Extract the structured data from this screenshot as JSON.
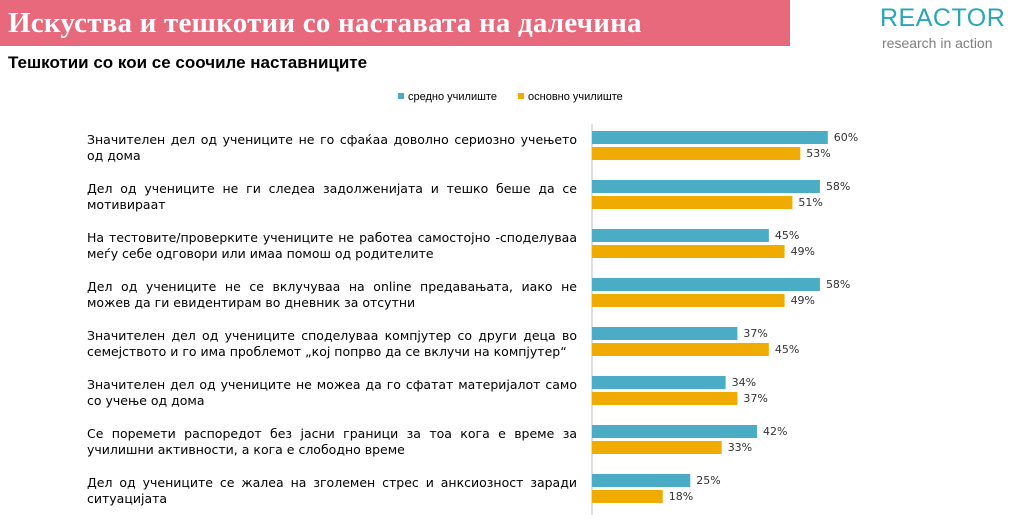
{
  "header": {
    "title": "Искуства и тешкотии со наставата на далечина",
    "subtitle": "Тешкотии со кои се соочиле наставниците"
  },
  "logo": {
    "wordmark": "REACTOR",
    "tagline": "research in action",
    "color": "#2aa6b8"
  },
  "colors": {
    "banner": "#e8697b",
    "series_secondary": "#4bacc6",
    "series_primary": "#f0ab00"
  },
  "chart_data": {
    "type": "bar",
    "orientation": "horizontal",
    "title": "Тешкотии со кои се соочиле наставниците",
    "xlim": [
      0,
      100
    ],
    "grid": false,
    "legend_position": "top-center",
    "value_suffix": "%",
    "categories": [
      "Значителен дел од учениците не го сфаќаа доволно сериозно учењето од дома",
      "Дел од учениците не ги следеа задолженијата и тешко беше да се мотивираат",
      "На тестовите/проверките учениците не работеа самостојно -споделуваа меѓу себе одговори или имаа помош од родителите",
      "Дел од учениците не се вклучуваа на online предавањата, иако не можев да ги евидентирам во дневник за отсутни",
      "Значителен дел од учениците споделуваа компјутер со други деца во семејството и го има проблемот „кој попрво да се вклучи на компјутер“",
      "Значителен дел од учениците не можеа да го сфатат материјалот само со учење од дома",
      "Се поремети распоредот без јасни граници за тоа кога е време за училишни активности, а кога е слободно време",
      "Дел од учениците се жалеа на зголемен стрес и анксиозност заради ситуацијата"
    ],
    "series": [
      {
        "name": "средно училиште",
        "color": "#4bacc6",
        "values": [
          60,
          58,
          45,
          58,
          37,
          34,
          42,
          25
        ]
      },
      {
        "name": "основно училиште",
        "color": "#f0ab00",
        "values": [
          53,
          51,
          49,
          49,
          45,
          37,
          33,
          18
        ]
      }
    ]
  }
}
